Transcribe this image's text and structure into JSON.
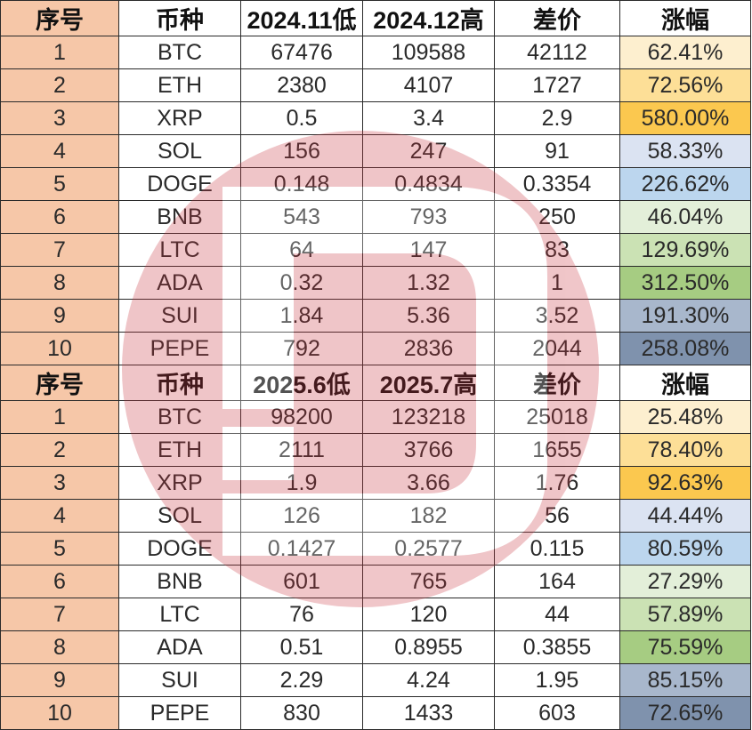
{
  "tables": [
    {
      "header": [
        "序号",
        "币种",
        "2024.11低",
        "2024.12高",
        "差价",
        "涨幅"
      ],
      "rows": [
        [
          "1",
          "BTC",
          "67476",
          "109588",
          "42112",
          "62.41%"
        ],
        [
          "2",
          "ETH",
          "2380",
          "4107",
          "1727",
          "72.56%"
        ],
        [
          "3",
          "XRP",
          "0.5",
          "3.4",
          "2.9",
          "580.00%"
        ],
        [
          "4",
          "SOL",
          "156",
          "247",
          "91",
          "58.33%"
        ],
        [
          "5",
          "DOGE",
          "0.148",
          "0.4834",
          "0.3354",
          "226.62%"
        ],
        [
          "6",
          "BNB",
          "543",
          "793",
          "250",
          "46.04%"
        ],
        [
          "7",
          "LTC",
          "64",
          "147",
          "83",
          "129.69%"
        ],
        [
          "8",
          "ADA",
          "0.32",
          "1.32",
          "1",
          "312.50%"
        ],
        [
          "9",
          "SUI",
          "1.84",
          "5.36",
          "3.52",
          "191.30%"
        ],
        [
          "10",
          "PEPE",
          "792",
          "2836",
          "2044",
          "258.08%"
        ]
      ]
    },
    {
      "header": [
        "序号",
        "币种",
        "2025.6低",
        "2025.7高",
        "差价",
        "涨幅"
      ],
      "rows": [
        [
          "1",
          "BTC",
          "98200",
          "123218",
          "25018",
          "25.48%"
        ],
        [
          "2",
          "ETH",
          "2111",
          "3766",
          "1655",
          "78.40%"
        ],
        [
          "3",
          "XRP",
          "1.9",
          "3.66",
          "1.76",
          "92.63%"
        ],
        [
          "4",
          "SOL",
          "126",
          "182",
          "56",
          "44.44%"
        ],
        [
          "5",
          "DOGE",
          "0.1427",
          "0.2577",
          "0.115",
          "80.59%"
        ],
        [
          "6",
          "BNB",
          "601",
          "765",
          "164",
          "27.29%"
        ],
        [
          "7",
          "LTC",
          "76",
          "120",
          "44",
          "57.89%"
        ],
        [
          "8",
          "ADA",
          "0.51",
          "0.8955",
          "0.3855",
          "75.59%"
        ],
        [
          "9",
          "SUI",
          "2.29",
          "4.24",
          "1.95",
          "85.15%"
        ],
        [
          "10",
          "PEPE",
          "830",
          "1433",
          "603",
          "72.65%"
        ]
      ]
    }
  ],
  "colors": {
    "index_column": "#f6c7a8",
    "change_column": [
      "#fdefcf",
      "#fddf97",
      "#fbc84f",
      "#dbe3f2",
      "#bcd6ee",
      "#e3efd9",
      "#cbe2b4",
      "#a6cc82",
      "#a8b7cc",
      "#7f92ad"
    ],
    "watermark": "#c8323c"
  },
  "watermark_icon": "stylized-b-logo-icon"
}
